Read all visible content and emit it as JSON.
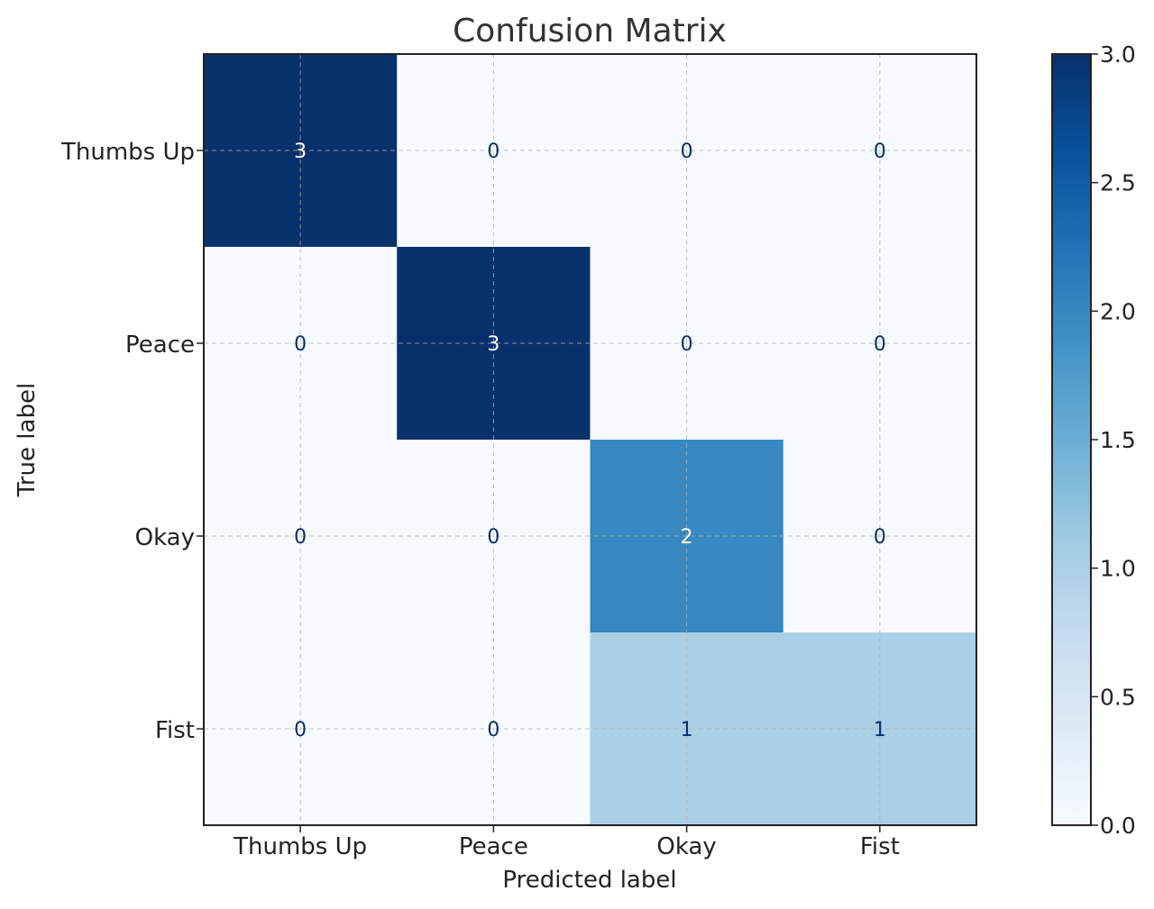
{
  "chart_data": {
    "type": "heatmap",
    "title": "Confusion Matrix",
    "xlabel": "Predicted label",
    "ylabel": "True label",
    "x_categories": [
      "Thumbs Up",
      "Peace",
      "Okay",
      "Fist"
    ],
    "y_categories": [
      "Thumbs Up",
      "Peace",
      "Okay",
      "Fist"
    ],
    "values": [
      [
        3,
        0,
        0,
        0
      ],
      [
        0,
        3,
        0,
        0
      ],
      [
        0,
        0,
        2,
        0
      ],
      [
        0,
        0,
        1,
        1
      ]
    ],
    "colormap": "Blues",
    "color_range": [
      0,
      3
    ],
    "colorbar_ticks": [
      "0.0",
      "0.5",
      "1.0",
      "1.5",
      "2.0",
      "2.5",
      "3.0"
    ],
    "grid": true,
    "colors": {
      "low": "#f7fbff",
      "high": "#08306b",
      "text_dark": "#08306b",
      "text_light": "#ffffff"
    }
  }
}
